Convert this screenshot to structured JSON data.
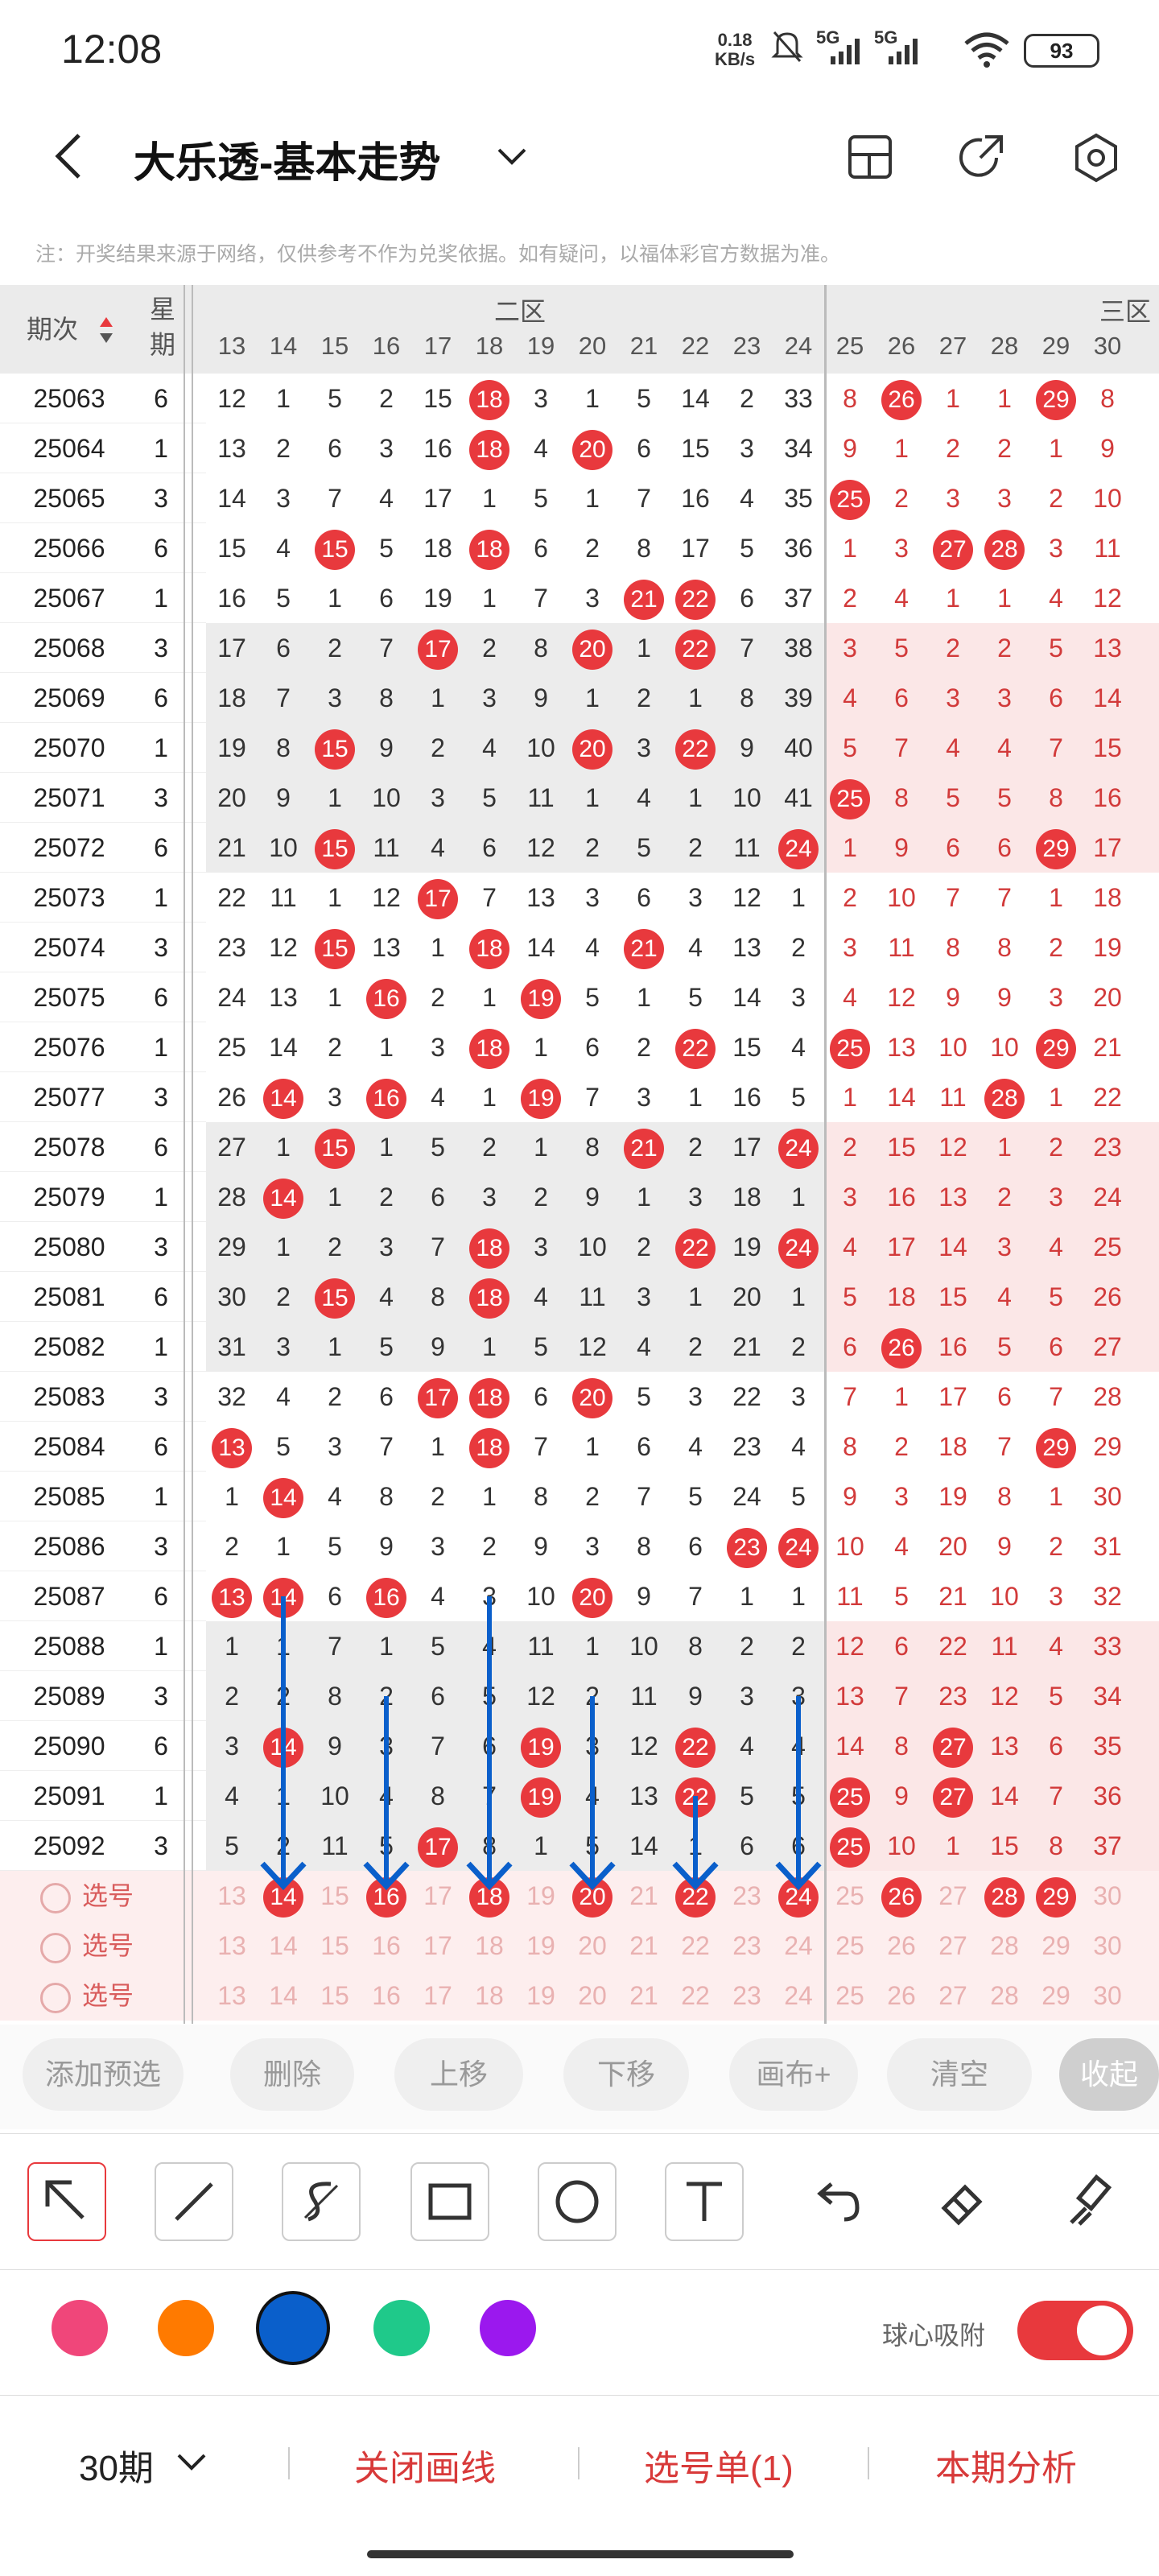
{
  "status": {
    "time": "12:08",
    "net_speed_value": "0.18",
    "net_speed_unit": "KB/s",
    "sig1": "5G",
    "sig2": "5G",
    "battery": "93"
  },
  "header": {
    "title": "大乐透-基本走势"
  },
  "notice": "注：开奖结果来源于网络，仅供参考不作为兑奖依据。如有疑问，以福体彩官方数据为准。",
  "table": {
    "col_issue": "期次",
    "col_week": "星期",
    "zone2": "二区",
    "zone3": "三区",
    "numbers": [
      "13",
      "14",
      "15",
      "16",
      "17",
      "18",
      "19",
      "20",
      "21",
      "22",
      "23",
      "24",
      "25",
      "26",
      "27",
      "28",
      "29",
      "30"
    ],
    "rows": [
      {
        "q": "25063",
        "w": "6",
        "v": [
          "12",
          "1",
          "5",
          "2",
          "15",
          "18",
          "3",
          "1",
          "5",
          "14",
          "2",
          "33",
          "8",
          "26",
          "1",
          "1",
          "29",
          "8"
        ],
        "h": [
          5,
          13,
          16
        ]
      },
      {
        "q": "25064",
        "w": "1",
        "v": [
          "13",
          "2",
          "6",
          "3",
          "16",
          "18",
          "4",
          "20",
          "6",
          "15",
          "3",
          "34",
          "9",
          "1",
          "2",
          "2",
          "1",
          "9"
        ],
        "h": [
          5,
          7
        ]
      },
      {
        "q": "25065",
        "w": "3",
        "v": [
          "14",
          "3",
          "7",
          "4",
          "17",
          "1",
          "5",
          "1",
          "7",
          "16",
          "4",
          "35",
          "25",
          "2",
          "3",
          "3",
          "2",
          "10"
        ],
        "h": [
          12
        ]
      },
      {
        "q": "25066",
        "w": "6",
        "v": [
          "15",
          "4",
          "15",
          "5",
          "18",
          "18",
          "6",
          "2",
          "8",
          "17",
          "5",
          "36",
          "1",
          "3",
          "27",
          "28",
          "3",
          "11"
        ],
        "h": [
          2,
          5,
          14,
          15
        ]
      },
      {
        "q": "25067",
        "w": "1",
        "v": [
          "16",
          "5",
          "1",
          "6",
          "19",
          "1",
          "7",
          "3",
          "21",
          "22",
          "6",
          "37",
          "2",
          "4",
          "1",
          "1",
          "4",
          "12"
        ],
        "h": [
          8,
          9
        ]
      },
      {
        "q": "25068",
        "w": "3",
        "v": [
          "17",
          "6",
          "2",
          "7",
          "17",
          "2",
          "8",
          "20",
          "1",
          "22",
          "7",
          "38",
          "3",
          "5",
          "2",
          "2",
          "5",
          "13"
        ],
        "h": [
          4,
          7,
          9
        ]
      },
      {
        "q": "25069",
        "w": "6",
        "v": [
          "18",
          "7",
          "3",
          "8",
          "1",
          "3",
          "9",
          "1",
          "2",
          "1",
          "8",
          "39",
          "4",
          "6",
          "3",
          "3",
          "6",
          "14"
        ],
        "h": []
      },
      {
        "q": "25070",
        "w": "1",
        "v": [
          "19",
          "8",
          "15",
          "9",
          "2",
          "4",
          "10",
          "20",
          "3",
          "22",
          "9",
          "40",
          "5",
          "7",
          "4",
          "4",
          "7",
          "15"
        ],
        "h": [
          2,
          7,
          9
        ]
      },
      {
        "q": "25071",
        "w": "3",
        "v": [
          "20",
          "9",
          "1",
          "10",
          "3",
          "5",
          "11",
          "1",
          "4",
          "1",
          "10",
          "41",
          "25",
          "8",
          "5",
          "5",
          "8",
          "16"
        ],
        "h": [
          12
        ]
      },
      {
        "q": "25072",
        "w": "6",
        "v": [
          "21",
          "10",
          "15",
          "11",
          "4",
          "6",
          "12",
          "2",
          "5",
          "2",
          "11",
          "24",
          "1",
          "9",
          "6",
          "6",
          "29",
          "17"
        ],
        "h": [
          2,
          11,
          16
        ]
      },
      {
        "q": "25073",
        "w": "1",
        "v": [
          "22",
          "11",
          "1",
          "12",
          "17",
          "7",
          "13",
          "3",
          "6",
          "3",
          "12",
          "1",
          "2",
          "10",
          "7",
          "7",
          "1",
          "18"
        ],
        "h": [
          4
        ]
      },
      {
        "q": "25074",
        "w": "3",
        "v": [
          "23",
          "12",
          "15",
          "13",
          "1",
          "18",
          "14",
          "4",
          "21",
          "4",
          "13",
          "2",
          "3",
          "11",
          "8",
          "8",
          "2",
          "19"
        ],
        "h": [
          2,
          5,
          8
        ]
      },
      {
        "q": "25075",
        "w": "6",
        "v": [
          "24",
          "13",
          "1",
          "16",
          "2",
          "1",
          "19",
          "5",
          "1",
          "5",
          "14",
          "3",
          "4",
          "12",
          "9",
          "9",
          "3",
          "20"
        ],
        "h": [
          3,
          6
        ]
      },
      {
        "q": "25076",
        "w": "1",
        "v": [
          "25",
          "14",
          "2",
          "1",
          "3",
          "18",
          "1",
          "6",
          "2",
          "22",
          "15",
          "4",
          "25",
          "13",
          "10",
          "10",
          "29",
          "21"
        ],
        "h": [
          5,
          9,
          12,
          16
        ]
      },
      {
        "q": "25077",
        "w": "3",
        "v": [
          "26",
          "14",
          "3",
          "16",
          "4",
          "1",
          "19",
          "7",
          "3",
          "1",
          "16",
          "5",
          "1",
          "14",
          "11",
          "28",
          "1",
          "22"
        ],
        "h": [
          1,
          3,
          6,
          15
        ]
      },
      {
        "q": "25078",
        "w": "6",
        "v": [
          "27",
          "1",
          "15",
          "1",
          "5",
          "2",
          "1",
          "8",
          "21",
          "2",
          "17",
          "24",
          "2",
          "15",
          "12",
          "1",
          "2",
          "23"
        ],
        "h": [
          2,
          8,
          11
        ]
      },
      {
        "q": "25079",
        "w": "1",
        "v": [
          "28",
          "14",
          "1",
          "2",
          "6",
          "3",
          "2",
          "9",
          "1",
          "3",
          "18",
          "1",
          "3",
          "16",
          "13",
          "2",
          "3",
          "24"
        ],
        "h": [
          1
        ]
      },
      {
        "q": "25080",
        "w": "3",
        "v": [
          "29",
          "1",
          "2",
          "3",
          "7",
          "18",
          "3",
          "10",
          "2",
          "22",
          "19",
          "24",
          "4",
          "17",
          "14",
          "3",
          "4",
          "25"
        ],
        "h": [
          5,
          9,
          11
        ]
      },
      {
        "q": "25081",
        "w": "6",
        "v": [
          "30",
          "2",
          "15",
          "4",
          "8",
          "18",
          "4",
          "11",
          "3",
          "1",
          "20",
          "1",
          "5",
          "18",
          "15",
          "4",
          "5",
          "26"
        ],
        "h": [
          2,
          5
        ]
      },
      {
        "q": "25082",
        "w": "1",
        "v": [
          "31",
          "3",
          "1",
          "5",
          "9",
          "1",
          "5",
          "12",
          "4",
          "2",
          "21",
          "2",
          "6",
          "26",
          "16",
          "5",
          "6",
          "27"
        ],
        "h": [
          13
        ]
      },
      {
        "q": "25083",
        "w": "3",
        "v": [
          "32",
          "4",
          "2",
          "6",
          "17",
          "18",
          "6",
          "20",
          "5",
          "3",
          "22",
          "3",
          "7",
          "1",
          "17",
          "6",
          "7",
          "28"
        ],
        "h": [
          4,
          5,
          7
        ]
      },
      {
        "q": "25084",
        "w": "6",
        "v": [
          "13",
          "5",
          "3",
          "7",
          "1",
          "18",
          "7",
          "1",
          "6",
          "4",
          "23",
          "4",
          "8",
          "2",
          "18",
          "7",
          "29",
          "29"
        ],
        "h": [
          0,
          5,
          16
        ]
      },
      {
        "q": "25085",
        "w": "1",
        "v": [
          "1",
          "14",
          "4",
          "8",
          "2",
          "1",
          "8",
          "2",
          "7",
          "5",
          "24",
          "5",
          "9",
          "3",
          "19",
          "8",
          "1",
          "30"
        ],
        "h": [
          1
        ]
      },
      {
        "q": "25086",
        "w": "3",
        "v": [
          "2",
          "1",
          "5",
          "9",
          "3",
          "2",
          "9",
          "3",
          "8",
          "6",
          "23",
          "24",
          "10",
          "4",
          "20",
          "9",
          "2",
          "31"
        ],
        "h": [
          10,
          11
        ]
      },
      {
        "q": "25087",
        "w": "6",
        "v": [
          "13",
          "14",
          "6",
          "16",
          "4",
          "3",
          "10",
          "20",
          "9",
          "7",
          "1",
          "1",
          "11",
          "5",
          "21",
          "10",
          "3",
          "32"
        ],
        "h": [
          0,
          1,
          3,
          7
        ]
      },
      {
        "q": "25088",
        "w": "1",
        "v": [
          "1",
          "1",
          "7",
          "1",
          "5",
          "4",
          "11",
          "1",
          "10",
          "8",
          "2",
          "2",
          "12",
          "6",
          "22",
          "11",
          "4",
          "33"
        ],
        "h": []
      },
      {
        "q": "25089",
        "w": "3",
        "v": [
          "2",
          "2",
          "8",
          "2",
          "6",
          "5",
          "12",
          "2",
          "11",
          "9",
          "3",
          "3",
          "13",
          "7",
          "23",
          "12",
          "5",
          "34"
        ],
        "h": []
      },
      {
        "q": "25090",
        "w": "6",
        "v": [
          "3",
          "14",
          "9",
          "3",
          "7",
          "6",
          "19",
          "3",
          "12",
          "22",
          "4",
          "4",
          "14",
          "8",
          "27",
          "13",
          "6",
          "35"
        ],
        "h": [
          1,
          6,
          9,
          14
        ]
      },
      {
        "q": "25091",
        "w": "1",
        "v": [
          "4",
          "1",
          "10",
          "4",
          "8",
          "7",
          "19",
          "4",
          "13",
          "22",
          "5",
          "5",
          "25",
          "9",
          "27",
          "14",
          "7",
          "36"
        ],
        "h": [
          6,
          9,
          12,
          14
        ]
      },
      {
        "q": "25092",
        "w": "3",
        "v": [
          "5",
          "2",
          "11",
          "5",
          "17",
          "8",
          "1",
          "5",
          "14",
          "1",
          "6",
          "6",
          "25",
          "10",
          "1",
          "15",
          "8",
          "37"
        ],
        "h": [
          4,
          12
        ]
      }
    ],
    "pick_label": "选号",
    "pick_rows": [
      {
        "h": [
          1,
          3,
          5,
          7,
          9,
          11,
          13,
          15,
          16
        ]
      },
      {
        "h": []
      },
      {
        "h": []
      }
    ]
  },
  "buttons": [
    "添加预选",
    "删除",
    "上移",
    "下移",
    "画布+",
    "清空",
    "收起"
  ],
  "tools": [
    "select-arrow-icon",
    "line-icon",
    "freehand-icon",
    "rectangle-icon",
    "circle-icon",
    "text-icon",
    "undo-icon",
    "eraser-icon",
    "clear-brush-icon"
  ],
  "colors": [
    "#f0467a",
    "#ff7a00",
    "#0a5fcb",
    "#1fc98a",
    "#9b18ee"
  ],
  "snap_label": "球心吸附",
  "bottom": {
    "periods": "30期",
    "close_lines": "关闭画线",
    "pick_list": "选号单(1)",
    "analysis": "本期分析"
  }
}
